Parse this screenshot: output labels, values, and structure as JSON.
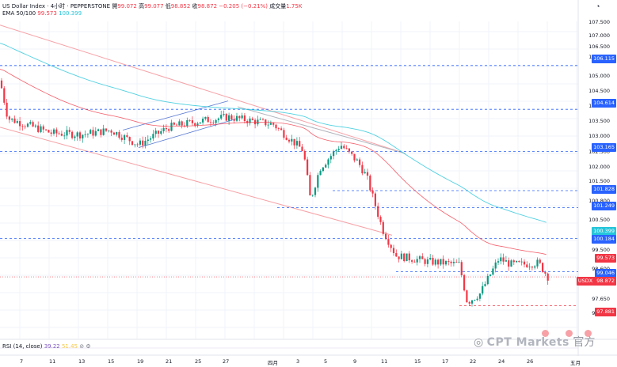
{
  "header": {
    "symbol": "US Dollar Index · 4小时 · PEPPERSTONE",
    "open_label": "開",
    "open": "99.072",
    "high_label": "高",
    "high": "99.077",
    "low_label": "低",
    "low": "98.852",
    "close_label": "收",
    "close": "98.872",
    "change": "−0.205 (−0.21%)",
    "volume_label": "成交量",
    "volume": "1.75K",
    "ema_label": "EMA 50/100",
    "ema50": "99.573",
    "ema100": "100.399",
    "rsi_label": "RSI (14, close)",
    "rsi1": "39.22",
    "rsi2": "51.45"
  },
  "watermark": {
    "brand": "CPT Markets",
    "suffix": "官方"
  },
  "price_labels": [
    {
      "text": "106.115",
      "color": "#2962ff"
    },
    {
      "text": "104.614",
      "color": "#2962ff"
    },
    {
      "text": "103.165",
      "color": "#2962ff"
    },
    {
      "text": "101.828",
      "color": "#2962ff"
    },
    {
      "text": "101.249",
      "color": "#2962ff"
    },
    {
      "text": "100.399",
      "color": "#26c6da"
    },
    {
      "text": "100.184",
      "color": "#2962ff"
    },
    {
      "text": "99.573",
      "color": "#f23645"
    },
    {
      "text": "99.046",
      "color": "#2962ff"
    },
    {
      "text": "98.872",
      "symbol": "USDX",
      "color": "#f23645"
    },
    {
      "text": "97.881",
      "color": "#f23645"
    }
  ],
  "y_ticks": [
    "107.500",
    "107.000",
    "106.500",
    "105.500",
    "105.000",
    "104.500",
    "104.000",
    "103.500",
    "103.000",
    "102.500",
    "102.000",
    "101.500",
    "100.800",
    "100.500",
    "99.500",
    "98.600",
    "98.100",
    "97.650",
    "97.200"
  ],
  "x_ticks": [
    "7",
    "11",
    "13",
    "15",
    "19",
    "21",
    "25",
    "27",
    "四月",
    "3",
    "5",
    "9",
    "11",
    "15",
    "17",
    "22",
    "24",
    "26",
    "五月"
  ],
  "colors": {
    "up": "#089981",
    "down": "#f23645",
    "ema50": "#f23645",
    "ema100": "#26c6da",
    "channel": "#f7a1a6",
    "hline": "#2962ff"
  },
  "chart_data": {
    "type": "candlestick",
    "title": "US Dollar Index · 4小时 · PEPPERSTONE",
    "ylim": [
      97.2,
      107.7
    ],
    "horizontal_levels": [
      106.115,
      104.614,
      103.165,
      101.828,
      101.249,
      100.184,
      99.046,
      97.881
    ],
    "last_price": 98.872,
    "ema50_last": 99.573,
    "ema100_last": 100.399,
    "close_path": [
      {
        "x": "Mar 6",
        "close": 105.6
      },
      {
        "x": "Mar 7",
        "close": 104.3
      },
      {
        "x": "Mar 11",
        "close": 103.8
      },
      {
        "x": "Mar 13",
        "close": 103.75
      },
      {
        "x": "Mar 15",
        "close": 103.9
      },
      {
        "x": "Mar 19",
        "close": 103.4
      },
      {
        "x": "Mar 21",
        "close": 104.0
      },
      {
        "x": "Mar 25",
        "close": 104.2
      },
      {
        "x": "Mar 27",
        "close": 104.35
      },
      {
        "x": "Apr 1",
        "close": 104.1
      },
      {
        "x": "Apr 3",
        "close": 103.2
      },
      {
        "x": "Apr 4",
        "close": 101.5
      },
      {
        "x": "Apr 5",
        "close": 102.6
      },
      {
        "x": "Apr 7",
        "close": 103.4
      },
      {
        "x": "Apr 9",
        "close": 102.8
      },
      {
        "x": "Apr 10",
        "close": 102.3
      },
      {
        "x": "Apr 11",
        "close": 100.5
      },
      {
        "x": "Apr 12",
        "close": 99.6
      },
      {
        "x": "Apr 15",
        "close": 99.4
      },
      {
        "x": "Apr 17",
        "close": 99.3
      },
      {
        "x": "Apr 21",
        "close": 98.0
      },
      {
        "x": "Apr 22",
        "close": 98.3
      },
      {
        "x": "Apr 23",
        "close": 99.5
      },
      {
        "x": "Apr 24",
        "close": 99.3
      },
      {
        "x": "Apr 25",
        "close": 99.3
      },
      {
        "x": "Apr 26",
        "close": 99.35
      },
      {
        "x": "Apr 28",
        "close": 98.87
      }
    ]
  }
}
